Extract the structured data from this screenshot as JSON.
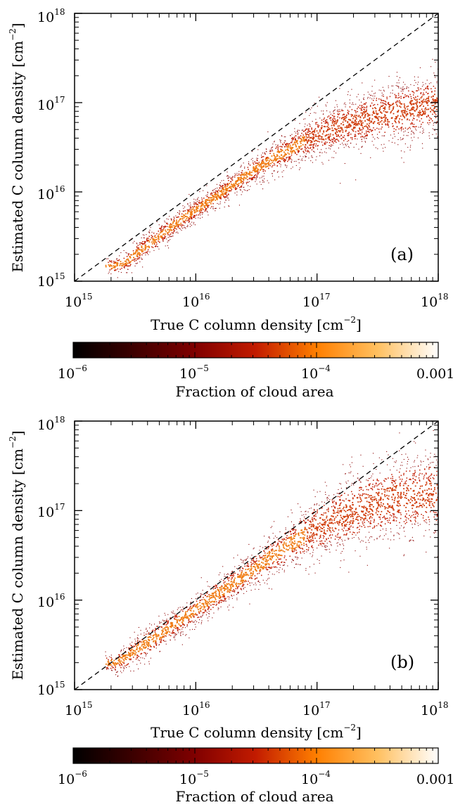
{
  "panels": [
    {
      "panel_label": "(a)",
      "chart_data": {
        "type": "heatmap",
        "subtype": "2D histogram scatter with one-to-one reference line",
        "xlabel": "True C column density [cm^-2]",
        "ylabel": "Estimated C column density [cm^-2]",
        "xscale": "log",
        "yscale": "log",
        "xlim": [
          1000000000000000.0,
          1e+18
        ],
        "ylim": [
          1000000000000000.0,
          1e+18
        ],
        "reference_line": {
          "style": "dashed",
          "x": [
            1000000000000000.0,
            1e+18
          ],
          "y": [
            1000000000000000.0,
            1e+18
          ]
        },
        "ridge": {
          "x": [
            1800000000000000.0,
            2200000000000000.0,
            2700000000000000.0,
            3500000000000000.0,
            5000000000000000.0,
            7000000000000000.0,
            1e+16,
            1.5e+16,
            2e+16,
            3e+16,
            4e+16,
            6e+16,
            8e+16,
            1e+17,
            1.5e+17,
            2e+17,
            3e+17,
            5e+17,
            7e+17,
            1e+18
          ],
          "y": [
            1450000000000000.0,
            1500000000000000.0,
            1650000000000000.0,
            2200000000000000.0,
            3200000000000000.0,
            4500000000000000.0,
            6300000000000000.0,
            9000000000000000.0,
            1.2e+16,
            1.75e+16,
            2.2e+16,
            3e+16,
            3.7e+16,
            4.3e+16,
            5.3e+16,
            6e+16,
            7e+16,
            8e+16,
            9e+16,
            1e+17
          ]
        },
        "ridge_scatter_dex": [
          0.05,
          0.05,
          0.06,
          0.07,
          0.07,
          0.07,
          0.07,
          0.07,
          0.07,
          0.08,
          0.09,
          0.1,
          0.11,
          0.13,
          0.15,
          0.16,
          0.17,
          0.18,
          0.18,
          0.18
        ],
        "colorbar": {
          "label": "Fraction of cloud area",
          "scale": "log",
          "range": [
            1e-06,
            0.001
          ],
          "colormap": "black-red-orange-white",
          "stops": [
            "#000000",
            "#3d0000",
            "#800000",
            "#c21b00",
            "#ff7f00",
            "#ffc060",
            "#ffffff"
          ]
        }
      },
      "axes": {
        "x_ticks": [
          {
            "base": "10",
            "exp": "15"
          },
          {
            "base": "10",
            "exp": "16"
          },
          {
            "base": "10",
            "exp": "17"
          },
          {
            "base": "10",
            "exp": "18"
          }
        ],
        "y_ticks": [
          {
            "base": "10",
            "exp": "15"
          },
          {
            "base": "10",
            "exp": "16"
          },
          {
            "base": "10",
            "exp": "17"
          },
          {
            "base": "10",
            "exp": "18"
          }
        ],
        "xlabel_text": "True C column density [cm",
        "ylabel_text": "Estimated C column density [cm",
        "unit_exp": "−2",
        "close_bracket": "]"
      },
      "colorbar_ticks": [
        {
          "base": "10",
          "exp": "−6"
        },
        {
          "base": "10",
          "exp": "−5"
        },
        {
          "base": "10",
          "exp": "−4"
        },
        {
          "base": "0.001",
          "exp": ""
        }
      ]
    },
    {
      "panel_label": "(b)",
      "chart_data": {
        "type": "heatmap",
        "subtype": "2D histogram scatter with one-to-one reference line",
        "xlabel": "True C column density [cm^-2]",
        "ylabel": "Estimated C column density [cm^-2]",
        "xscale": "log",
        "yscale": "log",
        "xlim": [
          1000000000000000.0,
          1e+18
        ],
        "ylim": [
          1000000000000000.0,
          1e+18
        ],
        "reference_line": {
          "style": "dashed",
          "x": [
            1000000000000000.0,
            1e+18
          ],
          "y": [
            1000000000000000.0,
            1e+18
          ]
        },
        "ridge": {
          "x": [
            1800000000000000.0,
            2200000000000000.0,
            2700000000000000.0,
            3500000000000000.0,
            5000000000000000.0,
            7000000000000000.0,
            1e+16,
            1.5e+16,
            2e+16,
            3e+16,
            4e+16,
            6e+16,
            8e+16,
            1e+17,
            1.5e+17,
            2e+17,
            3e+17,
            5e+17,
            7e+17,
            1e+18
          ],
          "y": [
            2000000000000000.0,
            2000000000000000.0,
            2300000000000000.0,
            3000000000000000.0,
            4100000000000000.0,
            5600000000000000.0,
            7800000000000000.0,
            1.15e+16,
            1.5e+16,
            2.2e+16,
            2.9e+16,
            4.2e+16,
            5.4e+16,
            6.5e+16,
            8.5e+16,
            1e+17,
            1.2e+17,
            1.4e+17,
            1.5e+17,
            1.55e+17
          ]
        },
        "ridge_scatter_dex": [
          0.05,
          0.06,
          0.08,
          0.09,
          0.09,
          0.09,
          0.09,
          0.1,
          0.1,
          0.11,
          0.12,
          0.14,
          0.16,
          0.18,
          0.21,
          0.23,
          0.24,
          0.25,
          0.25,
          0.25
        ],
        "colorbar": {
          "label": "Fraction of cloud area",
          "scale": "log",
          "range": [
            1e-06,
            0.001
          ],
          "colormap": "black-red-orange-white",
          "stops": [
            "#000000",
            "#3d0000",
            "#800000",
            "#c21b00",
            "#ff7f00",
            "#ffc060",
            "#ffffff"
          ]
        }
      },
      "axes": {
        "x_ticks": [
          {
            "base": "10",
            "exp": "15"
          },
          {
            "base": "10",
            "exp": "16"
          },
          {
            "base": "10",
            "exp": "17"
          },
          {
            "base": "10",
            "exp": "18"
          }
        ],
        "y_ticks": [
          {
            "base": "10",
            "exp": "15"
          },
          {
            "base": "10",
            "exp": "16"
          },
          {
            "base": "10",
            "exp": "17"
          },
          {
            "base": "10",
            "exp": "18"
          }
        ],
        "xlabel_text": "True C column density [cm",
        "ylabel_text": "Estimated C column density [cm",
        "unit_exp": "−2",
        "close_bracket": "]"
      },
      "colorbar_ticks": [
        {
          "base": "10",
          "exp": "−6"
        },
        {
          "base": "10",
          "exp": "−5"
        },
        {
          "base": "10",
          "exp": "−4"
        },
        {
          "base": "0.001",
          "exp": ""
        }
      ]
    }
  ],
  "colors": {
    "dashed_line": "#000000",
    "frame": "#000000",
    "point_dark": "#8b0000",
    "point_mid": "#c21b00",
    "point_bright": "#f07a10"
  }
}
